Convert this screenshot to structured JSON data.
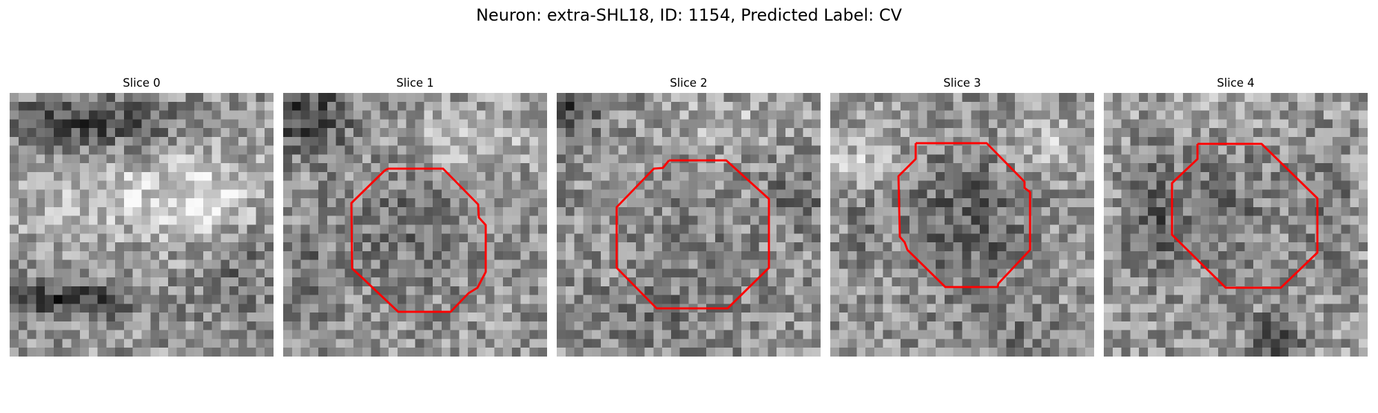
{
  "figure": {
    "title": "Neuron: extra-SHL18, ID: 1154, Predicted Label: CV",
    "contour_color": "#ff0000",
    "colormap": "gray"
  },
  "slices": [
    {
      "label": "Slice 0",
      "has_contour": false
    },
    {
      "label": "Slice 1",
      "has_contour": true
    },
    {
      "label": "Slice 2",
      "has_contour": true
    },
    {
      "label": "Slice 3",
      "has_contour": true
    },
    {
      "label": "Slice 4",
      "has_contour": true
    }
  ]
}
